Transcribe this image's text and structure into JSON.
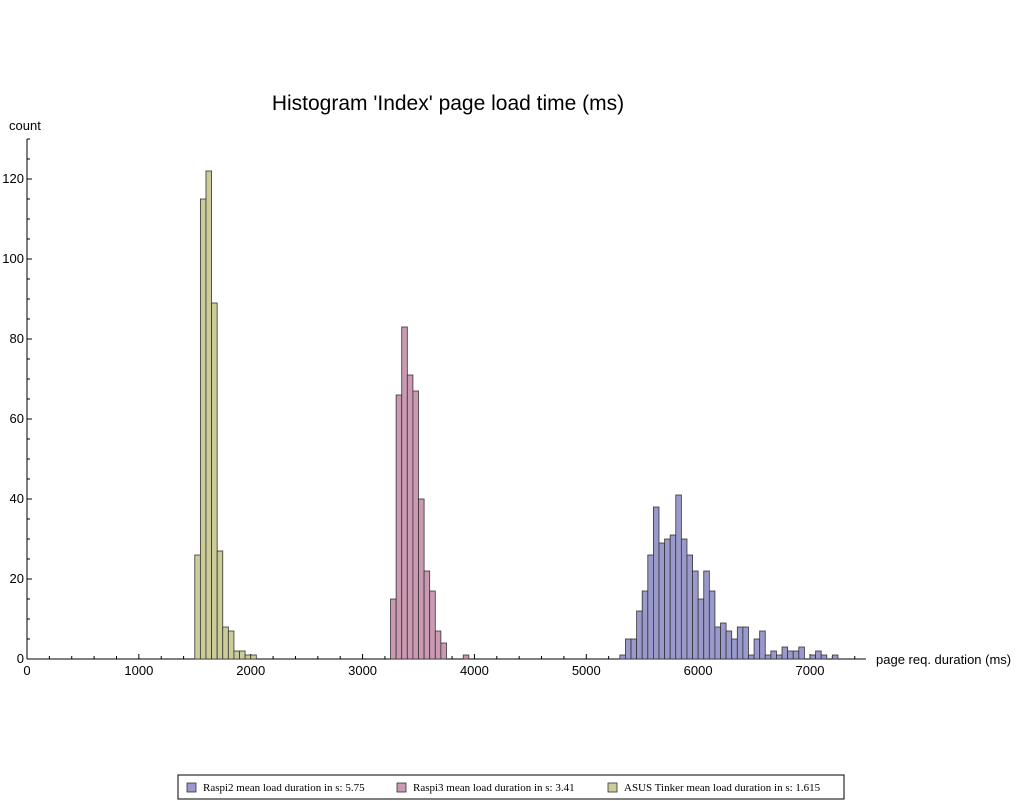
{
  "chart_data": {
    "type": "bar",
    "title": "Histogram 'Index' page load time (ms)",
    "xlabel": "page req. duration (ms)",
    "ylabel": "count",
    "xlim": [
      0,
      7500
    ],
    "ylim": [
      0,
      130
    ],
    "x_ticks": [
      0,
      1000,
      2000,
      3000,
      4000,
      5000,
      6000,
      7000
    ],
    "y_ticks": [
      0,
      20,
      40,
      60,
      80,
      100,
      120
    ],
    "bin_width": 50,
    "grid": false,
    "legend_position": "bottom",
    "series": [
      {
        "name": "Raspi2 mean load duration in s: 5.75",
        "color": "#9999cc",
        "bins": [
          [
            5300,
            1
          ],
          [
            5350,
            5
          ],
          [
            5400,
            5
          ],
          [
            5450,
            12
          ],
          [
            5500,
            17
          ],
          [
            5550,
            26
          ],
          [
            5600,
            38
          ],
          [
            5650,
            29
          ],
          [
            5700,
            30
          ],
          [
            5750,
            31
          ],
          [
            5800,
            41
          ],
          [
            5850,
            30
          ],
          [
            5900,
            26
          ],
          [
            5950,
            22
          ],
          [
            6000,
            15
          ],
          [
            6050,
            22
          ],
          [
            6100,
            17
          ],
          [
            6150,
            8
          ],
          [
            6200,
            9
          ],
          [
            6250,
            7
          ],
          [
            6300,
            5
          ],
          [
            6350,
            8
          ],
          [
            6400,
            8
          ],
          [
            6450,
            1
          ],
          [
            6500,
            5
          ],
          [
            6550,
            7
          ],
          [
            6600,
            1
          ],
          [
            6650,
            2
          ],
          [
            6700,
            1
          ],
          [
            6750,
            3
          ],
          [
            6800,
            2
          ],
          [
            6850,
            2
          ],
          [
            6900,
            3
          ],
          [
            6950,
            0
          ],
          [
            7000,
            1
          ],
          [
            7050,
            2
          ],
          [
            7100,
            1
          ],
          [
            7150,
            0
          ],
          [
            7200,
            1
          ]
        ]
      },
      {
        "name": "Raspi3 mean load duration in s: 3.41",
        "color": "#cc99b3",
        "bins": [
          [
            3250,
            15
          ],
          [
            3300,
            66
          ],
          [
            3350,
            83
          ],
          [
            3400,
            71
          ],
          [
            3450,
            67
          ],
          [
            3500,
            40
          ],
          [
            3550,
            22
          ],
          [
            3600,
            17
          ],
          [
            3650,
            7
          ],
          [
            3700,
            4
          ],
          [
            3900,
            1
          ]
        ]
      },
      {
        "name": "ASUS Tinker mean load duration in s: 1.615",
        "color": "#cccc99",
        "bins": [
          [
            1500,
            26
          ],
          [
            1550,
            115
          ],
          [
            1600,
            122
          ],
          [
            1650,
            89
          ],
          [
            1700,
            27
          ],
          [
            1750,
            8
          ],
          [
            1800,
            7
          ],
          [
            1850,
            2
          ],
          [
            1900,
            2
          ],
          [
            1950,
            1
          ],
          [
            2000,
            1
          ]
        ]
      }
    ]
  }
}
